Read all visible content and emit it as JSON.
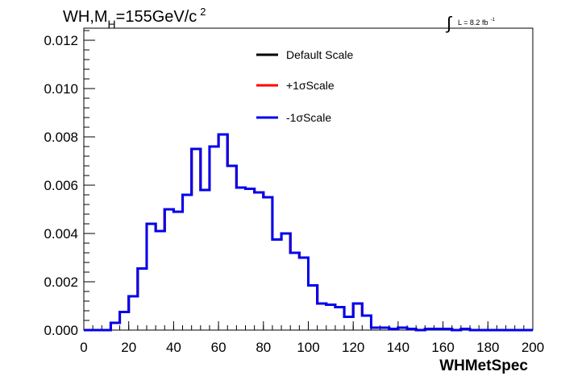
{
  "chart_data": {
    "type": "line",
    "title_main": "WH,M",
    "title_sub": "H",
    "title_tail": "=155GeV/c",
    "title_sup": "2",
    "lumi_prefix": "L = 8.2 fb",
    "lumi_sup": "-1",
    "xlabel": "WHMetSpec",
    "ylabel": "",
    "xlim": [
      0,
      200
    ],
    "ylim": [
      0,
      0.0125
    ],
    "xticks": [
      "0",
      "20",
      "40",
      "60",
      "80",
      "100",
      "120",
      "140",
      "160",
      "180",
      "200"
    ],
    "yticks": [
      "0.000",
      "0.002",
      "0.004",
      "0.006",
      "0.008",
      "0.010",
      "0.012"
    ],
    "legend_position": "top-center",
    "bin_width": 4,
    "bin_edges_start": 0,
    "series": [
      {
        "name": "Default Scale",
        "color": "#000000",
        "values": [
          0.0,
          0.0,
          0.0,
          0.0003,
          0.00075,
          0.0014,
          0.00255,
          0.0044,
          0.0041,
          0.005,
          0.0049,
          0.0056,
          0.0075,
          0.0058,
          0.0076,
          0.0081,
          0.0068,
          0.0059,
          0.00585,
          0.0057,
          0.0055,
          0.00375,
          0.004,
          0.0032,
          0.003,
          0.00185,
          0.0011,
          0.00105,
          0.00095,
          0.00055,
          0.0011,
          0.0006,
          0.0001,
          0.0001,
          5e-05,
          0.0001,
          5e-05,
          0.0,
          5e-05,
          5e-05,
          5e-05,
          0.0,
          5e-05,
          0.0,
          0.0,
          0.0,
          0.0,
          0.0,
          0.0,
          0.0
        ]
      },
      {
        "name": "+1σScale",
        "color": "#ff0000",
        "values": [
          0.0,
          0.0,
          0.0,
          0.0003,
          0.00075,
          0.0014,
          0.00255,
          0.0044,
          0.0041,
          0.005,
          0.0049,
          0.0056,
          0.0075,
          0.0058,
          0.0076,
          0.0081,
          0.0068,
          0.0059,
          0.00585,
          0.0057,
          0.0055,
          0.00375,
          0.004,
          0.0032,
          0.003,
          0.00185,
          0.0011,
          0.00105,
          0.00095,
          0.00055,
          0.0011,
          0.0006,
          0.0001,
          0.0001,
          5e-05,
          0.0001,
          5e-05,
          0.0,
          5e-05,
          5e-05,
          5e-05,
          0.0,
          5e-05,
          0.0,
          0.0,
          0.0,
          0.0,
          0.0,
          0.0,
          0.0
        ]
      },
      {
        "name": "-1σScale",
        "color": "#0000ee",
        "values": [
          0.0,
          0.0,
          0.0,
          0.0003,
          0.00075,
          0.0014,
          0.00255,
          0.0044,
          0.0041,
          0.005,
          0.0049,
          0.0056,
          0.0075,
          0.0058,
          0.0076,
          0.0081,
          0.0068,
          0.0059,
          0.00585,
          0.0057,
          0.0055,
          0.00375,
          0.004,
          0.0032,
          0.003,
          0.00185,
          0.0011,
          0.00105,
          0.00095,
          0.00055,
          0.0011,
          0.0006,
          0.0001,
          0.0001,
          5e-05,
          0.0001,
          5e-05,
          0.0,
          5e-05,
          5e-05,
          5e-05,
          0.0,
          5e-05,
          0.0,
          0.0,
          0.0,
          0.0,
          0.0,
          0.0,
          0.0
        ]
      }
    ]
  }
}
